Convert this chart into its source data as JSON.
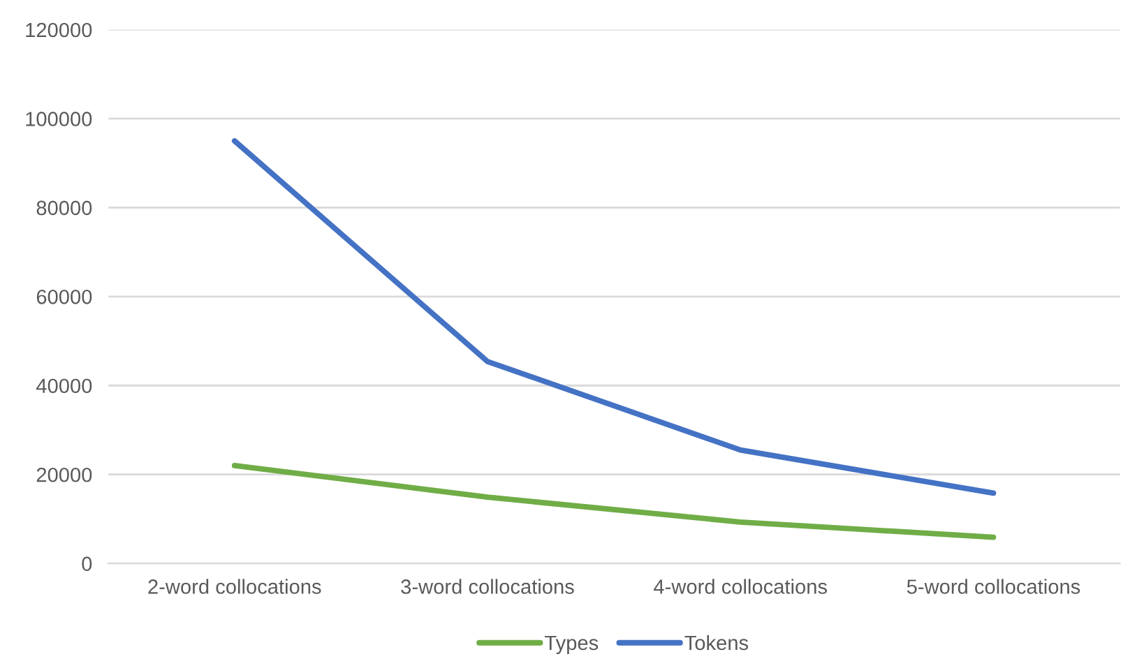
{
  "chart_data": {
    "type": "line",
    "categories": [
      "2-word collocations",
      "3-word collocations",
      "4-word collocations",
      "5-word collocations"
    ],
    "series": [
      {
        "name": "Types",
        "color": "#70ad47",
        "values": [
          22000,
          14900,
          9300,
          5900
        ]
      },
      {
        "name": "Tokens",
        "color": "#4472c4",
        "values": [
          95000,
          45400,
          25500,
          15800
        ]
      }
    ],
    "ylim": [
      0,
      120000
    ],
    "yticks": [
      0,
      20000,
      40000,
      60000,
      80000,
      100000,
      120000
    ],
    "grid": "y",
    "legend": "bottom",
    "marker": "none",
    "line_style": "solid"
  }
}
